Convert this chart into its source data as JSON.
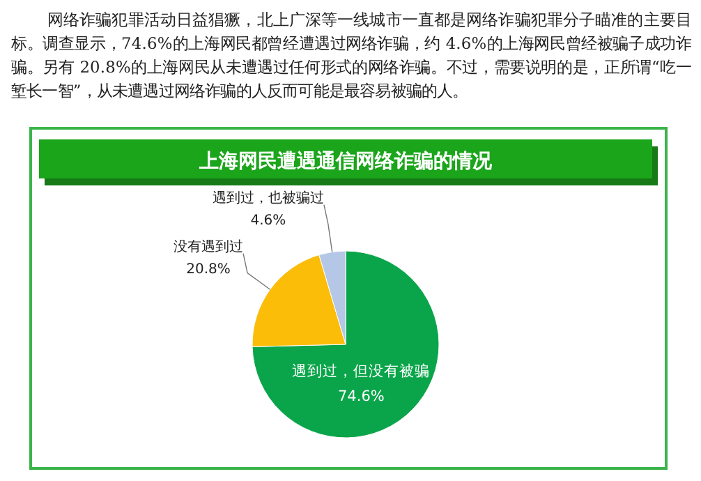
{
  "chart_data": {
    "type": "pie",
    "title": "上海网民遭遇通信网络诈骗的情况",
    "annotations": [
      "网络诈骗犯罪活动日益猖獗，北上广深等一线城市一直都是网络诈骗犯罪分子瞄准的主要目标。调查显示，74.6%的上海网民都曾经遭遇过网络诈骗，约 4.6%的上海网民曾经被骗子成功诈骗。另有 20.8%的上海网民从未遭遇过任何形式的网络诈骗。不过，需要说明的是，正所谓“吃一堑长一智”，从未遭遇过网络诈骗的人反而可能是最容易被骗的人。"
    ],
    "categories": [
      "遇到过，但没有被骗",
      "没有遇到过",
      "遇到过，也被骗过"
    ],
    "values": [
      74.6,
      20.8,
      4.6
    ],
    "value_labels": [
      "74.6%",
      "20.8%",
      "4.6%"
    ],
    "colors": [
      "#0aa54a",
      "#fbbd08",
      "#b4c7e7"
    ]
  }
}
